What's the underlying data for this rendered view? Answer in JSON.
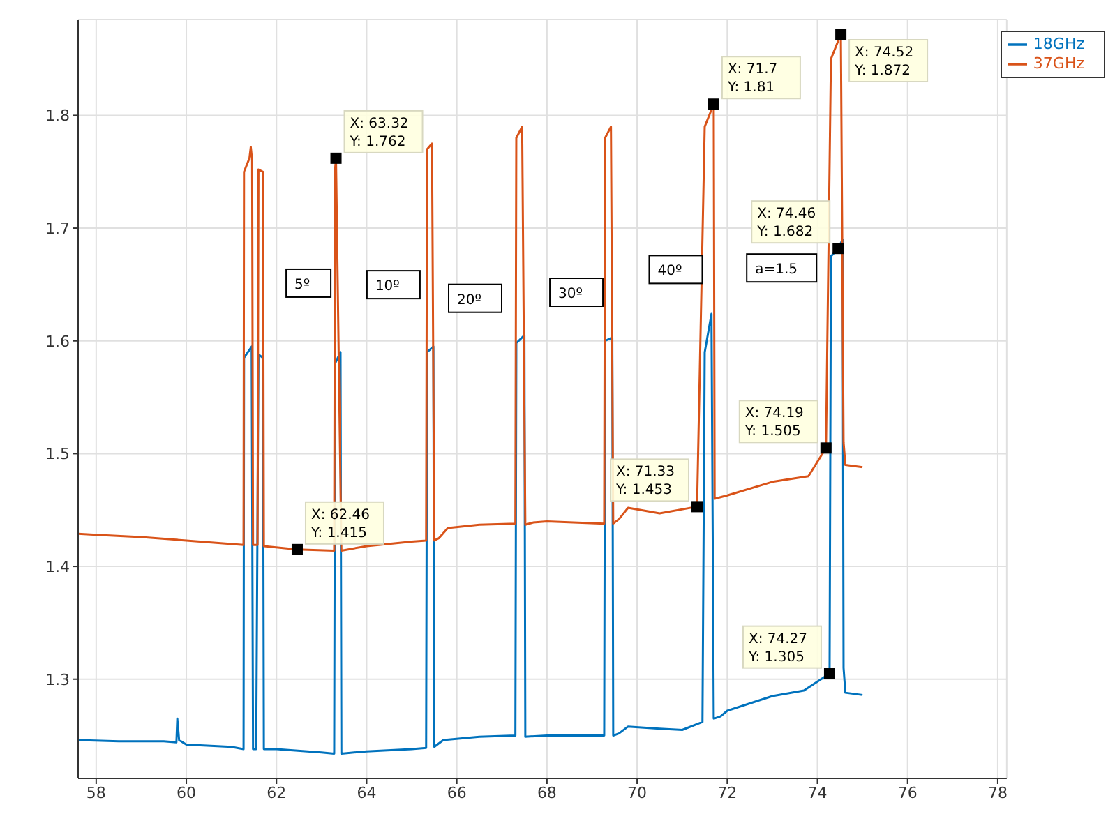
{
  "chart_data": {
    "type": "line",
    "xlim": [
      57.6,
      78.2
    ],
    "ylim": [
      1.212,
      1.885
    ],
    "xticks": [
      58,
      60,
      62,
      64,
      66,
      68,
      70,
      72,
      74,
      76,
      78
    ],
    "yticks": [
      1.3,
      1.4,
      1.5,
      1.6,
      1.7,
      1.8
    ],
    "grid": true,
    "legend": "top right",
    "marker": "none",
    "line_style": "solid",
    "series": [
      {
        "name": "18GHz",
        "color": "#0072bd",
        "x": [
          57.6,
          58.5,
          59.5,
          59.78,
          59.8,
          59.84,
          60,
          61,
          61.27,
          61.28,
          61.45,
          61.48,
          61.55,
          61.6,
          61.7,
          61.72,
          62,
          63,
          63.28,
          63.3,
          63.42,
          63.44,
          64,
          65,
          65.32,
          65.34,
          65.48,
          65.5,
          65.7,
          66.5,
          67.3,
          67.32,
          67.5,
          67.52,
          68,
          69.27,
          69.29,
          69.45,
          69.47,
          69.6,
          69.8,
          70.5,
          71,
          71.45,
          71.5,
          71.65,
          71.7,
          71.85,
          72,
          73,
          73.7,
          74.27,
          74.3,
          74.46,
          74.56,
          74.58,
          74.62,
          75
        ],
        "values": [
          1.246,
          1.245,
          1.245,
          1.244,
          1.265,
          1.246,
          1.242,
          1.24,
          1.238,
          1.585,
          1.595,
          1.238,
          1.238,
          1.588,
          1.585,
          1.238,
          1.238,
          1.235,
          1.234,
          1.58,
          1.59,
          1.234,
          1.236,
          1.238,
          1.239,
          1.59,
          1.595,
          1.24,
          1.246,
          1.249,
          1.25,
          1.598,
          1.605,
          1.249,
          1.25,
          1.25,
          1.6,
          1.603,
          1.25,
          1.252,
          1.258,
          1.256,
          1.255,
          1.262,
          1.59,
          1.624,
          1.265,
          1.267,
          1.272,
          1.285,
          1.29,
          1.305,
          1.675,
          1.682,
          1.69,
          1.31,
          1.288,
          1.286
        ]
      },
      {
        "name": "37GHz",
        "color": "#d95319",
        "x": [
          57.6,
          58,
          59,
          60,
          61.27,
          61.28,
          61.4,
          61.43,
          61.46,
          61.48,
          61.58,
          61.6,
          61.7,
          61.72,
          62.46,
          63.28,
          63.3,
          63.32,
          63.44,
          64,
          65,
          65.32,
          65.34,
          65.45,
          65.5,
          65.6,
          65.8,
          66.5,
          67.3,
          67.32,
          67.45,
          67.52,
          67.7,
          68,
          69.27,
          69.29,
          69.42,
          69.47,
          69.6,
          69.8,
          70.5,
          71.33,
          71.5,
          71.7,
          71.72,
          72,
          73,
          73.8,
          74.19,
          74.3,
          74.52,
          74.58,
          74.62,
          75
        ],
        "values": [
          1.429,
          1.428,
          1.426,
          1.423,
          1.419,
          1.75,
          1.762,
          1.772,
          1.76,
          1.419,
          1.419,
          1.752,
          1.75,
          1.418,
          1.415,
          1.414,
          1.752,
          1.762,
          1.414,
          1.418,
          1.422,
          1.423,
          1.77,
          1.775,
          1.423,
          1.425,
          1.434,
          1.437,
          1.438,
          1.78,
          1.79,
          1.437,
          1.439,
          1.44,
          1.438,
          1.78,
          1.79,
          1.438,
          1.442,
          1.452,
          1.447,
          1.453,
          1.79,
          1.81,
          1.46,
          1.463,
          1.475,
          1.48,
          1.505,
          1.85,
          1.872,
          1.51,
          1.49,
          1.488
        ]
      }
    ],
    "annotations": [
      "5º",
      "10º",
      "20º",
      "30º",
      "40º",
      "a=1.5",
      {
        "text": "X: 63.32\nY: 1.762",
        "x": 63.32,
        "y": 1.762
      },
      {
        "text": "X: 62.46\nY: 1.415",
        "x": 62.46,
        "y": 1.415
      },
      {
        "text": "X: 71.7\nY: 1.81",
        "x": 71.7,
        "y": 1.81
      },
      {
        "text": "X: 71.33\nY: 1.453",
        "x": 71.33,
        "y": 1.453
      },
      {
        "text": "X: 74.52\nY: 1.872",
        "x": 74.52,
        "y": 1.872
      },
      {
        "text": "X: 74.46\nY: 1.682",
        "x": 74.46,
        "y": 1.682
      },
      {
        "text": "X: 74.19\nY: 1.505",
        "x": 74.19,
        "y": 1.505
      },
      {
        "text": "X: 74.27\nY: 1.305",
        "x": 74.27,
        "y": 1.305
      }
    ]
  }
}
